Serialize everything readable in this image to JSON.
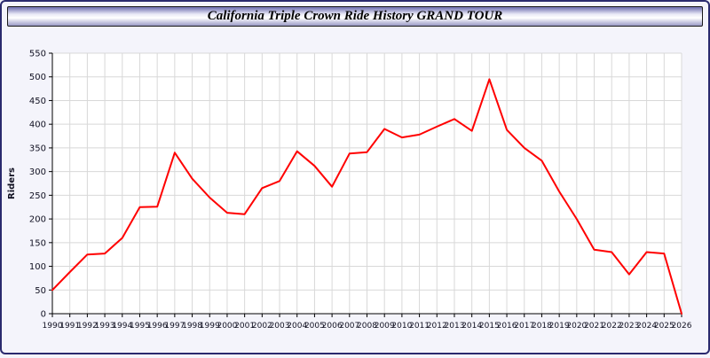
{
  "title_bar": {
    "title": "California Triple Crown Ride History GRAND TOUR"
  },
  "chart_data": {
    "type": "line",
    "title": "California Triple Crown Ride History GRAND TOUR",
    "xlabel": "",
    "ylabel": "Riders",
    "ylim": [
      0,
      550
    ],
    "ytick_step": 50,
    "grid": true,
    "legend_position": "none",
    "x": [
      1990,
      1991,
      1992,
      1993,
      1994,
      1995,
      1996,
      1997,
      1998,
      1999,
      2000,
      2001,
      2002,
      2003,
      2004,
      2005,
      2006,
      2007,
      2008,
      2009,
      2010,
      2011,
      2012,
      2013,
      2014,
      2015,
      2016,
      2017,
      2018,
      2019,
      2020,
      2021,
      2022,
      2023,
      2024,
      2025,
      2026
    ],
    "series": [
      {
        "name": "Riders",
        "values": [
          50,
          88,
          125,
          127,
          160,
          225,
          226,
          340,
          285,
          245,
          213,
          210,
          265,
          280,
          343,
          312,
          268,
          338,
          341,
          390,
          372,
          378,
          395,
          411,
          386,
          495,
          388,
          350,
          323,
          258,
          200,
          135,
          130,
          83,
          130,
          127,
          0
        ]
      }
    ],
    "colors": {
      "line": "#ff0000",
      "grid": "#d8d8d8",
      "axis": "#000000",
      "plot_bg": "#ffffff",
      "label": "#111122"
    }
  }
}
